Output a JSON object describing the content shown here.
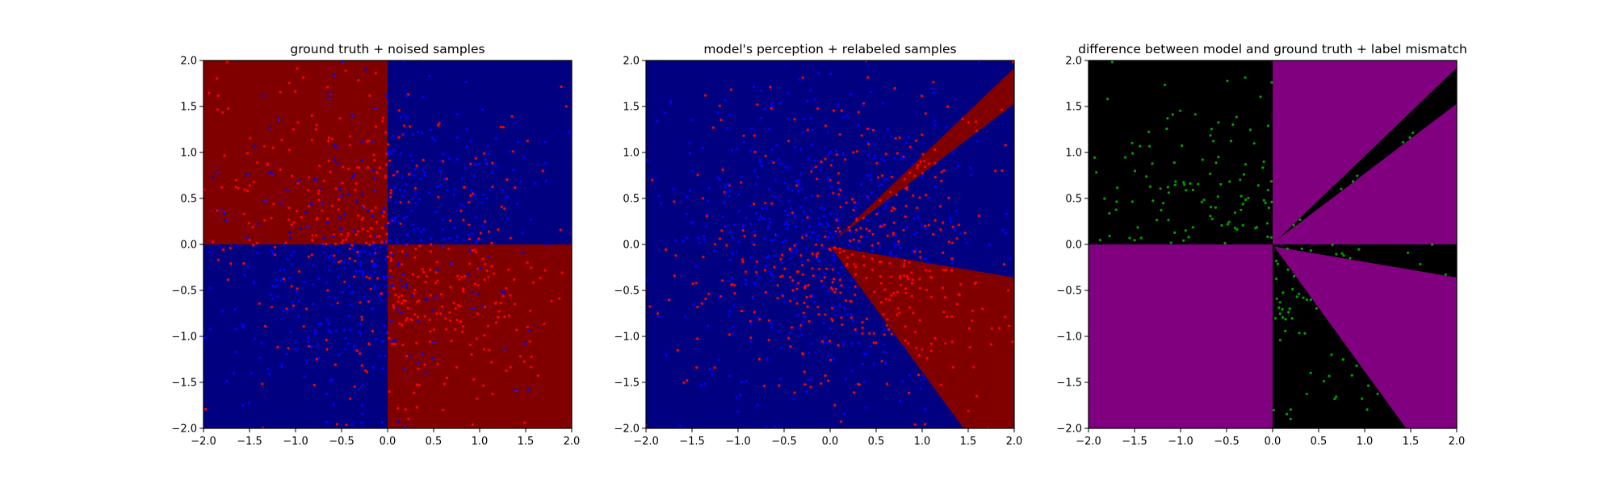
{
  "colors": {
    "dark_red": "#800000",
    "dark_blue": "#000080",
    "purple": "#800080",
    "black": "#000000",
    "red_point": "#ff0000",
    "blue_point": "#0000ff",
    "green_point": "#00a000"
  },
  "chart_data": [
    {
      "type": "scatter",
      "title": "ground truth + noised samples",
      "xlim": [
        -2.0,
        2.0
      ],
      "ylim": [
        -2.0,
        2.0
      ],
      "xticks": [
        "−2.0",
        "−1.5",
        "−1.0",
        "−0.5",
        "0.0",
        "0.5",
        "1.0",
        "1.5",
        "2.0"
      ],
      "yticks": [
        "−2.0",
        "−1.5",
        "−1.0",
        "−0.5",
        "0.0",
        "0.5",
        "1.0",
        "1.5",
        "2.0"
      ],
      "background": "Quadrant regions: upper-left and lower-right dark red, upper-right and lower-left dark blue",
      "regions": [
        {
          "color": "dark_red",
          "polygon": [
            [
              -2,
              0
            ],
            [
              0,
              0
            ],
            [
              0,
              2
            ],
            [
              -2,
              2
            ]
          ]
        },
        {
          "color": "dark_blue",
          "polygon": [
            [
              0,
              0
            ],
            [
              2,
              0
            ],
            [
              2,
              2
            ],
            [
              0,
              2
            ]
          ]
        },
        {
          "color": "dark_blue",
          "polygon": [
            [
              -2,
              -2
            ],
            [
              0,
              -2
            ],
            [
              0,
              0
            ],
            [
              -2,
              0
            ]
          ]
        },
        {
          "color": "dark_red",
          "polygon": [
            [
              0,
              -2
            ],
            [
              2,
              -2
            ],
            [
              2,
              0
            ],
            [
              0,
              0
            ]
          ]
        }
      ],
      "points": "approximately 900 noisy red and blue sample points spread over the square, denser near the origin"
    },
    {
      "type": "scatter",
      "title": "model's perception + relabeled samples",
      "xlim": [
        -2.0,
        2.0
      ],
      "ylim": [
        -2.0,
        2.0
      ],
      "xticks": [
        "−2.0",
        "−1.5",
        "−1.0",
        "−0.5",
        "0.0",
        "0.5",
        "1.0",
        "1.5",
        "2.0"
      ],
      "yticks": [
        "−2.0",
        "−1.5",
        "−1.0",
        "−0.5",
        "0.0",
        "0.5",
        "1.0",
        "1.5",
        "2.0"
      ],
      "background": "Mostly dark blue, with a thin dark red wedge toward the upper right and a larger dark red wedge toward the lower right",
      "regions": [
        {
          "color": "dark_blue",
          "polygon": [
            [
              -2,
              -2
            ],
            [
              2,
              -2
            ],
            [
              2,
              2
            ],
            [
              -2,
              2
            ]
          ]
        },
        {
          "color": "dark_red",
          "polygon": [
            [
              0.05,
              0.05
            ],
            [
              2,
              1.92
            ],
            [
              2,
              1.53
            ]
          ]
        },
        {
          "color": "dark_red",
          "polygon": [
            [
              0,
              -0.02
            ],
            [
              2,
              -0.36
            ],
            [
              2,
              -2
            ],
            [
              1.45,
              -2
            ]
          ]
        }
      ],
      "points": "red points mostly in lower-left and lower-right, blue points concentrated upper-left near origin, red points in upper-right wedge"
    },
    {
      "type": "scatter",
      "title": "difference between model and ground truth + label mismatch",
      "xlim": [
        -2.0,
        2.0
      ],
      "ylim": [
        -2.0,
        2.0
      ],
      "xticks": [
        "−2.0",
        "−1.5",
        "−1.0",
        "−0.5",
        "0.0",
        "0.5",
        "1.0",
        "1.5",
        "2.0"
      ],
      "yticks": [
        "−2.0",
        "−1.5",
        "−1.0",
        "−0.5",
        "0.0",
        "0.5",
        "1.0",
        "1.5",
        "2.0"
      ],
      "background": "Black where model and ground truth disagree, purple where they agree",
      "regions": [
        {
          "color": "black",
          "polygon": [
            [
              -2,
              0
            ],
            [
              0,
              0
            ],
            [
              0,
              2
            ],
            [
              -2,
              2
            ]
          ]
        },
        {
          "color": "purple",
          "polygon": [
            [
              0,
              0
            ],
            [
              2,
              0
            ],
            [
              2,
              2
            ],
            [
              0,
              2
            ]
          ]
        },
        {
          "color": "black",
          "polygon": [
            [
              0.05,
              0.05
            ],
            [
              2,
              1.92
            ],
            [
              2,
              1.53
            ]
          ]
        },
        {
          "color": "purple",
          "polygon": [
            [
              -2,
              -2
            ],
            [
              0,
              -2
            ],
            [
              0,
              0
            ],
            [
              -2,
              0
            ]
          ]
        },
        {
          "color": "purple",
          "polygon": [
            [
              0,
              -2
            ],
            [
              2,
              -2
            ],
            [
              2,
              0
            ],
            [
              0,
              0
            ]
          ]
        },
        {
          "color": "black",
          "polygon": [
            [
              0,
              -0.02
            ],
            [
              2,
              -0.36
            ],
            [
              2,
              0
            ],
            [
              0,
              0
            ]
          ]
        },
        {
          "color": "black",
          "polygon": [
            [
              0,
              0
            ],
            [
              0,
              -2
            ],
            [
              1.45,
              -2
            ]
          ]
        }
      ],
      "points": "green mismatch points clustered in upper-left region, along the y-axis, and in the lower-right wedge area"
    }
  ]
}
